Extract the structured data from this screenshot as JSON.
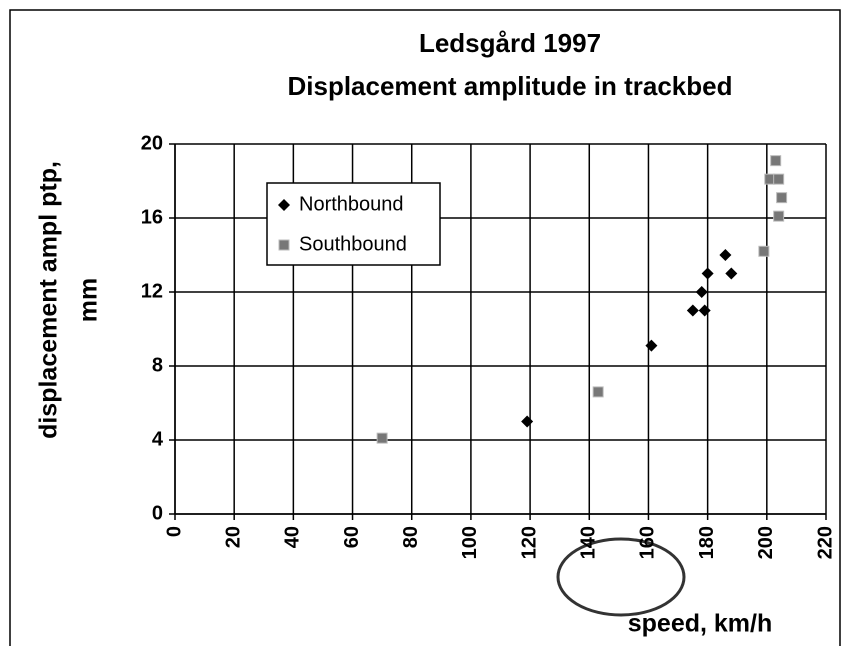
{
  "chart_data": {
    "type": "scatter",
    "title": "Ledsgård 1997",
    "subtitle": "Displacement amplitude in trackbed",
    "xlabel": "speed, km/h",
    "ylabel": [
      "displacement ampl ptp,",
      "mm"
    ],
    "xlim": [
      0,
      220
    ],
    "ylim": [
      0,
      20
    ],
    "xticks": [
      0,
      20,
      40,
      60,
      80,
      100,
      120,
      140,
      160,
      180,
      200,
      220
    ],
    "yticks": [
      0,
      4,
      8,
      12,
      16,
      20
    ],
    "grid": true,
    "legend": "upper left",
    "series": [
      {
        "name": "Northbound",
        "color": "#000000",
        "marker": "diamond",
        "x": [
          119,
          161,
          175,
          179,
          178,
          180,
          186,
          188
        ],
        "values": [
          5,
          9.1,
          11,
          11,
          12,
          13,
          14,
          13
        ]
      },
      {
        "name": "Southbound",
        "color": "#777777",
        "marker": "square",
        "x": [
          70,
          143,
          199,
          201,
          204,
          203,
          205,
          204
        ],
        "values": [
          4.1,
          6.6,
          14.2,
          18.1,
          18.1,
          19.1,
          17.1,
          16.1
        ]
      }
    ]
  }
}
